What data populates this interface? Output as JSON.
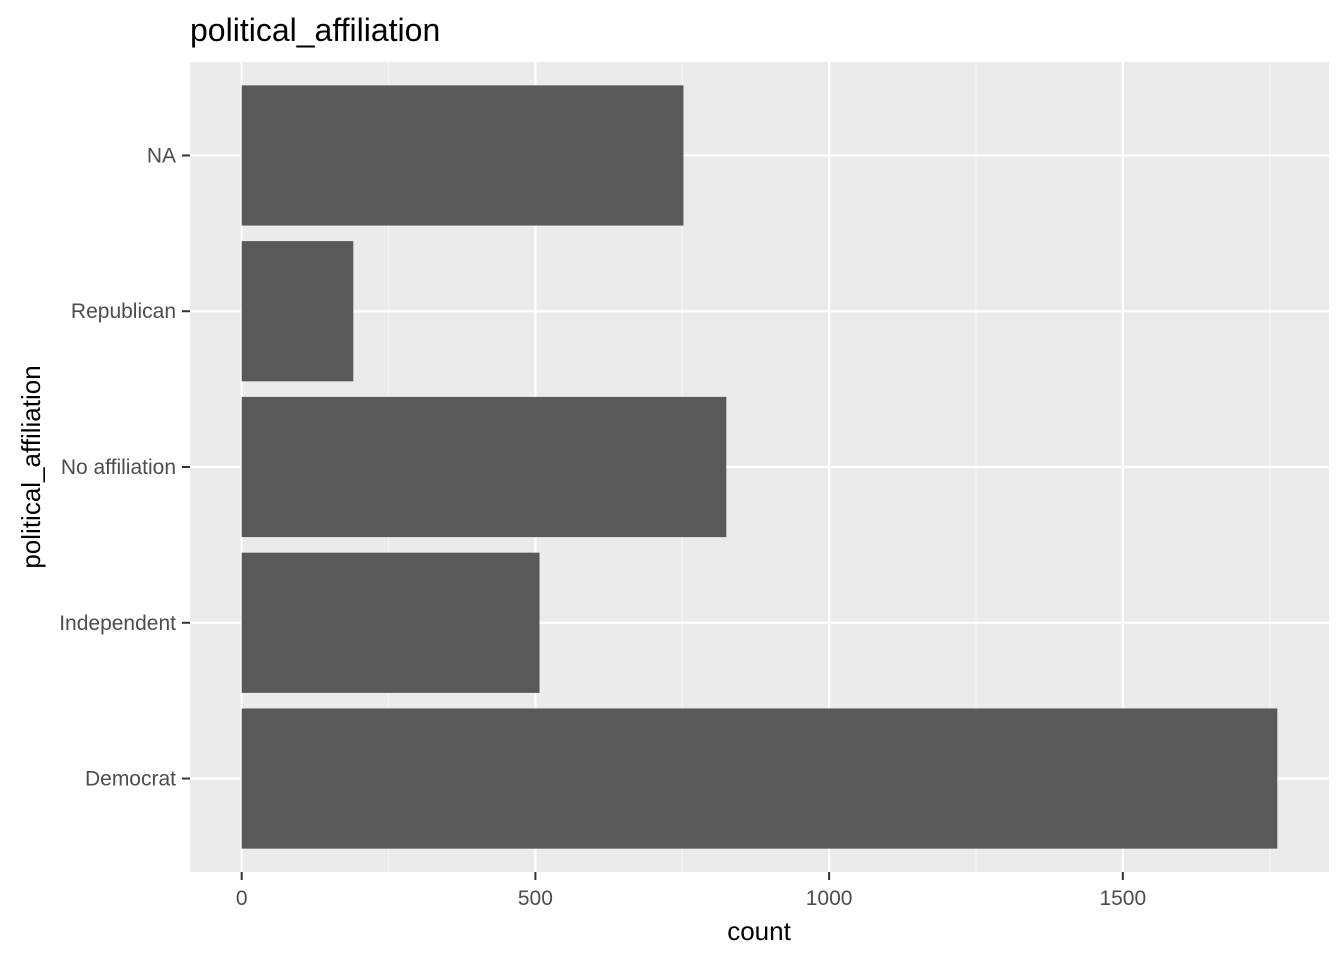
{
  "chart_data": {
    "type": "bar",
    "orientation": "horizontal",
    "title": "political_affiliation",
    "xlabel": "count",
    "ylabel": "political_affiliation",
    "categories": [
      "Democrat",
      "Independent",
      "No affiliation",
      "Republican",
      "NA"
    ],
    "values": [
      1763,
      507,
      825,
      190,
      752
    ],
    "xlim": [
      -88,
      1851
    ],
    "x_ticks": [
      0,
      500,
      1000,
      1500
    ],
    "grid": true,
    "legend": "none",
    "colors": {
      "panel_background": "#EBEBEB",
      "grid_major": "#FFFFFF",
      "grid_minor": "#F5F5F5",
      "bar_fill": "#595959",
      "axis_text": "#4D4D4D",
      "title_text": "#000000"
    }
  }
}
